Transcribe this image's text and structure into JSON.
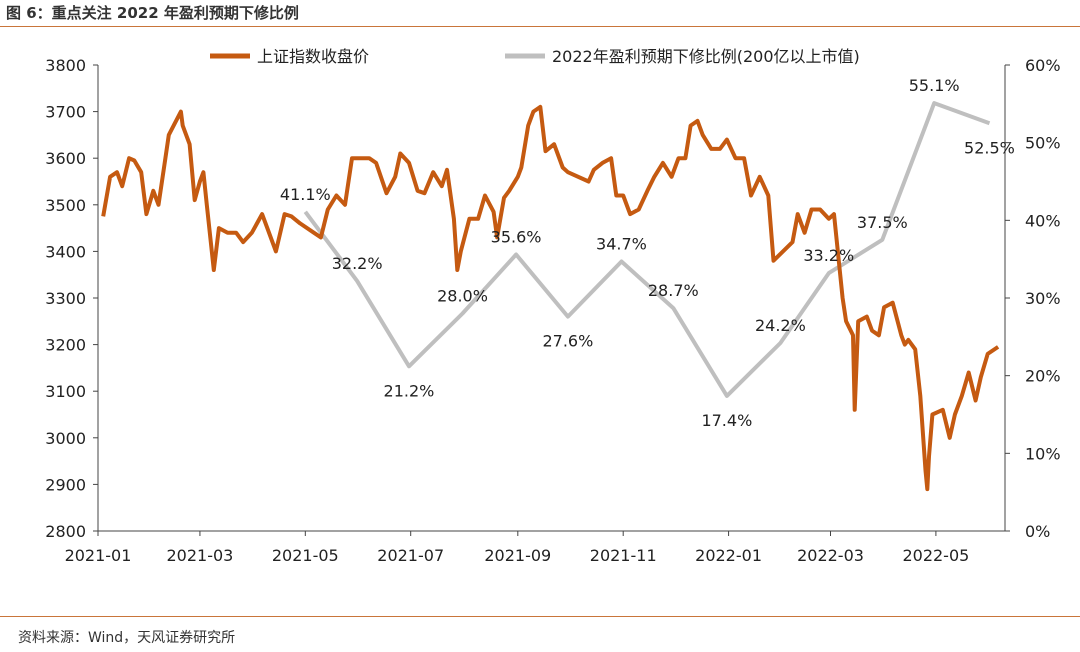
{
  "figure": {
    "title": "图 6：重点关注 2022 年盈利预期下修比例",
    "source": "资料来源：Wind，天风证券研究所"
  },
  "chart_data": {
    "type": "line",
    "x_tick_labels": [
      "2021-01",
      "2021-03",
      "2021-05",
      "2021-07",
      "2021-09",
      "2021-11",
      "2022-01",
      "2022-03",
      "2022-05"
    ],
    "xlim": [
      "2021-01-01",
      "2022-06-10"
    ],
    "y_left": {
      "lim": [
        2800,
        3800
      ],
      "ticks": [
        2800,
        2900,
        3000,
        3100,
        3200,
        3300,
        3400,
        3500,
        3600,
        3700,
        3800
      ]
    },
    "y_right": {
      "lim": [
        0,
        60
      ],
      "ticks": [
        "0%",
        "10%",
        "20%",
        "30%",
        "40%",
        "50%",
        "60%"
      ]
    },
    "grid": false,
    "legend_position": "top",
    "series": [
      {
        "name": "上证指数收盘价",
        "axis": "left",
        "color": "#c55a11",
        "points": [
          [
            "2021-01-04",
            3475
          ],
          [
            "2021-01-08",
            3560
          ],
          [
            "2021-01-12",
            3570
          ],
          [
            "2021-01-15",
            3540
          ],
          [
            "2021-01-19",
            3600
          ],
          [
            "2021-01-22",
            3595
          ],
          [
            "2021-01-26",
            3570
          ],
          [
            "2021-01-29",
            3480
          ],
          [
            "2021-02-02",
            3530
          ],
          [
            "2021-02-05",
            3500
          ],
          [
            "2021-02-09",
            3600
          ],
          [
            "2021-02-11",
            3650
          ],
          [
            "2021-02-18",
            3700
          ],
          [
            "2021-02-19",
            3670
          ],
          [
            "2021-02-23",
            3630
          ],
          [
            "2021-02-26",
            3510
          ],
          [
            "2021-03-01",
            3550
          ],
          [
            "2021-03-03",
            3570
          ],
          [
            "2021-03-05",
            3500
          ],
          [
            "2021-03-09",
            3360
          ],
          [
            "2021-03-12",
            3450
          ],
          [
            "2021-03-17",
            3440
          ],
          [
            "2021-03-22",
            3440
          ],
          [
            "2021-03-26",
            3420
          ],
          [
            "2021-03-31",
            3440
          ],
          [
            "2021-04-06",
            3480
          ],
          [
            "2021-04-09",
            3450
          ],
          [
            "2021-04-14",
            3400
          ],
          [
            "2021-04-19",
            3480
          ],
          [
            "2021-04-23",
            3475
          ],
          [
            "2021-04-28",
            3460
          ],
          [
            "2021-05-06",
            3440
          ],
          [
            "2021-05-10",
            3430
          ],
          [
            "2021-05-14",
            3490
          ],
          [
            "2021-05-19",
            3520
          ],
          [
            "2021-05-24",
            3500
          ],
          [
            "2021-05-28",
            3600
          ],
          [
            "2021-06-02",
            3600
          ],
          [
            "2021-06-07",
            3600
          ],
          [
            "2021-06-11",
            3590
          ],
          [
            "2021-06-17",
            3525
          ],
          [
            "2021-06-22",
            3560
          ],
          [
            "2021-06-25",
            3610
          ],
          [
            "2021-06-30",
            3590
          ],
          [
            "2021-07-05",
            3530
          ],
          [
            "2021-07-09",
            3525
          ],
          [
            "2021-07-14",
            3570
          ],
          [
            "2021-07-19",
            3540
          ],
          [
            "2021-07-22",
            3575
          ],
          [
            "2021-07-26",
            3470
          ],
          [
            "2021-07-28",
            3360
          ],
          [
            "2021-07-30",
            3400
          ],
          [
            "2021-08-04",
            3470
          ],
          [
            "2021-08-09",
            3470
          ],
          [
            "2021-08-13",
            3520
          ],
          [
            "2021-08-18",
            3485
          ],
          [
            "2021-08-20",
            3430
          ],
          [
            "2021-08-24",
            3515
          ],
          [
            "2021-08-27",
            3530
          ],
          [
            "2021-09-01",
            3560
          ],
          [
            "2021-09-03",
            3580
          ],
          [
            "2021-09-07",
            3670
          ],
          [
            "2021-09-10",
            3700
          ],
          [
            "2021-09-14",
            3710
          ],
          [
            "2021-09-17",
            3615
          ],
          [
            "2021-09-22",
            3630
          ],
          [
            "2021-09-27",
            3580
          ],
          [
            "2021-09-30",
            3570
          ],
          [
            "2021-10-12",
            3550
          ],
          [
            "2021-10-15",
            3575
          ],
          [
            "2021-10-20",
            3590
          ],
          [
            "2021-10-25",
            3600
          ],
          [
            "2021-10-28",
            3520
          ],
          [
            "2021-11-01",
            3520
          ],
          [
            "2021-11-05",
            3480
          ],
          [
            "2021-11-10",
            3490
          ],
          [
            "2021-11-15",
            3530
          ],
          [
            "2021-11-19",
            3560
          ],
          [
            "2021-11-24",
            3590
          ],
          [
            "2021-11-29",
            3560
          ],
          [
            "2021-12-03",
            3600
          ],
          [
            "2021-12-07",
            3600
          ],
          [
            "2021-12-10",
            3670
          ],
          [
            "2021-12-14",
            3680
          ],
          [
            "2021-12-17",
            3650
          ],
          [
            "2021-12-22",
            3620
          ],
          [
            "2021-12-27",
            3620
          ],
          [
            "2021-12-31",
            3640
          ],
          [
            "2022-01-05",
            3600
          ],
          [
            "2022-01-10",
            3600
          ],
          [
            "2022-01-14",
            3520
          ],
          [
            "2022-01-19",
            3560
          ],
          [
            "2022-01-24",
            3520
          ],
          [
            "2022-01-27",
            3380
          ],
          [
            "2022-02-07",
            3420
          ],
          [
            "2022-02-10",
            3480
          ],
          [
            "2022-02-14",
            3440
          ],
          [
            "2022-02-18",
            3490
          ],
          [
            "2022-02-23",
            3490
          ],
          [
            "2022-02-28",
            3470
          ],
          [
            "2022-03-03",
            3480
          ],
          [
            "2022-03-08",
            3300
          ],
          [
            "2022-03-10",
            3250
          ],
          [
            "2022-03-14",
            3220
          ],
          [
            "2022-03-15",
            3060
          ],
          [
            "2022-03-17",
            3250
          ],
          [
            "2022-03-22",
            3260
          ],
          [
            "2022-03-25",
            3230
          ],
          [
            "2022-03-29",
            3220
          ],
          [
            "2022-04-01",
            3280
          ],
          [
            "2022-04-06",
            3290
          ],
          [
            "2022-04-11",
            3220
          ],
          [
            "2022-04-13",
            3200
          ],
          [
            "2022-04-15",
            3210
          ],
          [
            "2022-04-19",
            3190
          ],
          [
            "2022-04-22",
            3090
          ],
          [
            "2022-04-25",
            2930
          ],
          [
            "2022-04-26",
            2890
          ],
          [
            "2022-04-27",
            2960
          ],
          [
            "2022-04-29",
            3050
          ],
          [
            "2022-05-05",
            3060
          ],
          [
            "2022-05-09",
            3000
          ],
          [
            "2022-05-12",
            3050
          ],
          [
            "2022-05-16",
            3090
          ],
          [
            "2022-05-20",
            3140
          ],
          [
            "2022-05-24",
            3080
          ],
          [
            "2022-05-27",
            3130
          ],
          [
            "2022-05-31",
            3180
          ],
          [
            "2022-06-06",
            3195
          ]
        ]
      },
      {
        "name": "2022年盈利预期下修比例(200亿以上市值)",
        "axis": "right",
        "color": "#bfbfbf",
        "points": [
          [
            "2021-05-01",
            41.1
          ],
          [
            "2021-05-31",
            32.2
          ],
          [
            "2021-06-30",
            21.2
          ],
          [
            "2021-07-31",
            28.0
          ],
          [
            "2021-08-31",
            35.6
          ],
          [
            "2021-09-30",
            27.6
          ],
          [
            "2021-10-31",
            34.7
          ],
          [
            "2021-11-30",
            28.7
          ],
          [
            "2021-12-31",
            17.4
          ],
          [
            "2022-01-31",
            24.2
          ],
          [
            "2022-02-28",
            33.2
          ],
          [
            "2022-03-31",
            37.5
          ],
          [
            "2022-04-30",
            55.1
          ],
          [
            "2022-06-01",
            52.5
          ]
        ],
        "labels": [
          "41.1%",
          "32.2%",
          "21.2%",
          "28.0%",
          "35.6%",
          "27.6%",
          "34.7%",
          "28.7%",
          "17.4%",
          "24.2%",
          "33.2%",
          "37.5%",
          "55.1%",
          "52.5%"
        ]
      }
    ]
  }
}
